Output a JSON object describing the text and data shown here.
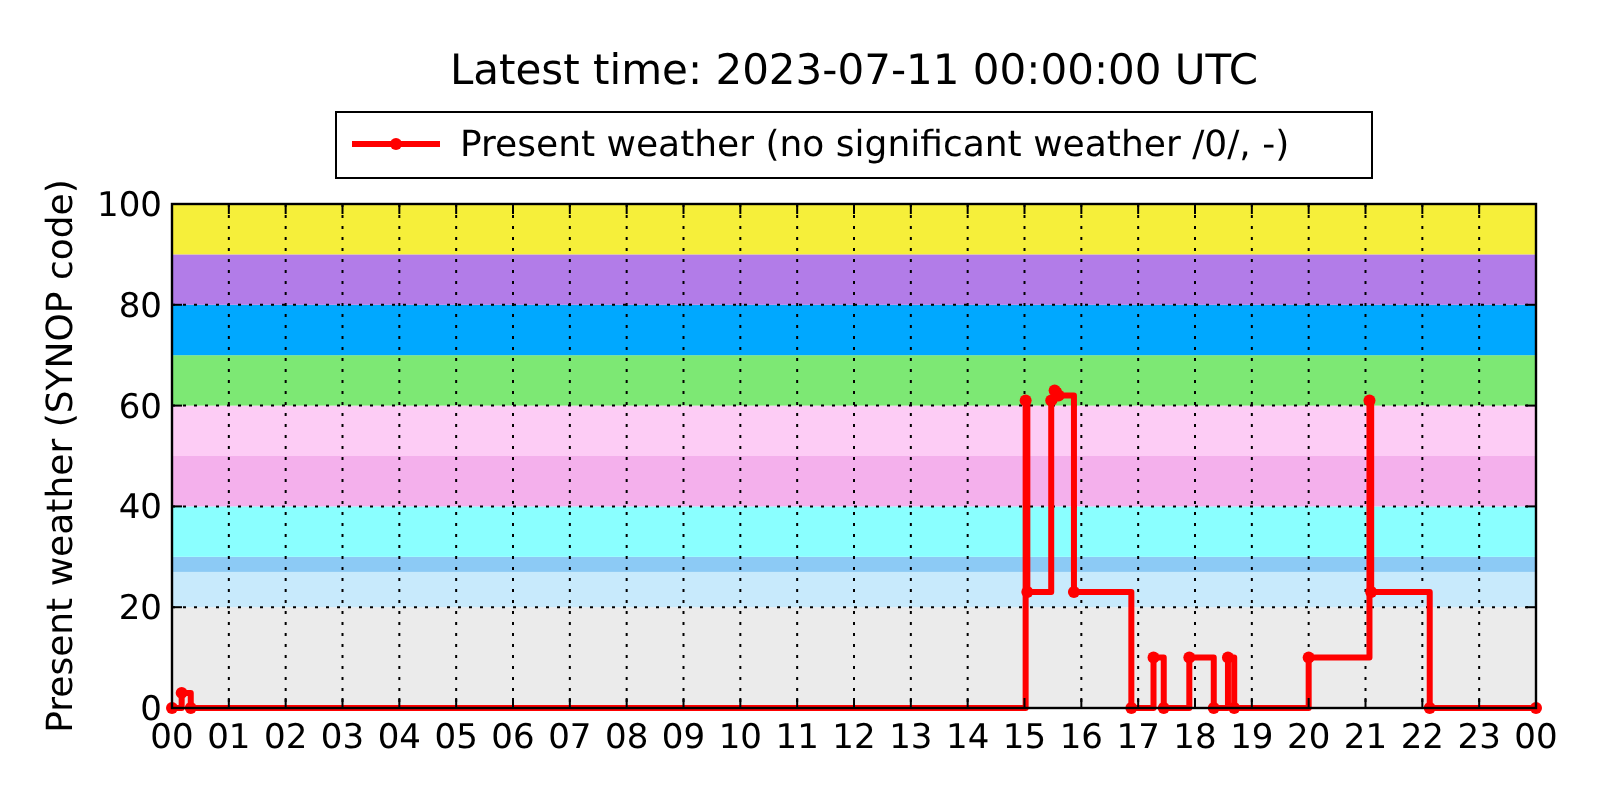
{
  "chart_data": {
    "type": "step",
    "title": "Latest time: 2023-07-11 00:00:00 UTC",
    "ylabel": "Present weather (SYNOP code)",
    "x": [
      0,
      0.17,
      0.33,
      15.02,
      15.05,
      15.47,
      15.53,
      15.6,
      15.87,
      16.88,
      17.27,
      17.45,
      17.9,
      18.33,
      18.58,
      18.69,
      20.0,
      21.07,
      21.1,
      22.13,
      24
    ],
    "series": [
      {
        "name": "Present weather (no significant weather /0/, -)",
        "color": "#ff0000",
        "values": [
          0,
          3,
          0,
          61,
          23,
          61,
          63,
          62,
          23,
          0,
          10,
          0,
          10,
          0,
          10,
          0,
          10,
          61,
          23,
          0,
          0
        ]
      }
    ],
    "xlim": [
      0,
      24
    ],
    "xticks": [
      {
        "value": 0,
        "label": "00"
      },
      {
        "value": 1,
        "label": "01"
      },
      {
        "value": 2,
        "label": "02"
      },
      {
        "value": 3,
        "label": "03"
      },
      {
        "value": 4,
        "label": "04"
      },
      {
        "value": 5,
        "label": "05"
      },
      {
        "value": 6,
        "label": "06"
      },
      {
        "value": 7,
        "label": "07"
      },
      {
        "value": 8,
        "label": "08"
      },
      {
        "value": 9,
        "label": "09"
      },
      {
        "value": 10,
        "label": "10"
      },
      {
        "value": 11,
        "label": "11"
      },
      {
        "value": 12,
        "label": "12"
      },
      {
        "value": 13,
        "label": "13"
      },
      {
        "value": 14,
        "label": "14"
      },
      {
        "value": 15,
        "label": "15"
      },
      {
        "value": 16,
        "label": "16"
      },
      {
        "value": 17,
        "label": "17"
      },
      {
        "value": 18,
        "label": "18"
      },
      {
        "value": 19,
        "label": "19"
      },
      {
        "value": 20,
        "label": "20"
      },
      {
        "value": 21,
        "label": "21"
      },
      {
        "value": 22,
        "label": "22"
      },
      {
        "value": 23,
        "label": "23"
      },
      {
        "value": 24,
        "label": "00"
      }
    ],
    "ylim": [
      0,
      100
    ],
    "yticks": [
      0,
      20,
      40,
      60,
      80,
      100
    ],
    "bands": [
      {
        "axis": "y",
        "from": 0,
        "to": 20,
        "color": "#ebebeb"
      },
      {
        "axis": "y",
        "from": 20,
        "to": 27,
        "color": "#c8eafc"
      },
      {
        "axis": "y",
        "from": 27,
        "to": 30,
        "color": "#8ccaf5"
      },
      {
        "axis": "y",
        "from": 30,
        "to": 40,
        "color": "#8affff"
      },
      {
        "axis": "y",
        "from": 40,
        "to": 50,
        "color": "#f4b0ec"
      },
      {
        "axis": "y",
        "from": 50,
        "to": 60,
        "color": "#fdccf5"
      },
      {
        "axis": "y",
        "from": 60,
        "to": 70,
        "color": "#7de874"
      },
      {
        "axis": "y",
        "from": 70,
        "to": 80,
        "color": "#00a8ff"
      },
      {
        "axis": "y",
        "from": 80,
        "to": 90,
        "color": "#b27ce8"
      },
      {
        "axis": "y",
        "from": 90,
        "to": 100,
        "color": "#f6ef3a"
      }
    ],
    "grid": true,
    "legend": "top",
    "marker": "circle",
    "line_style": "solid"
  }
}
